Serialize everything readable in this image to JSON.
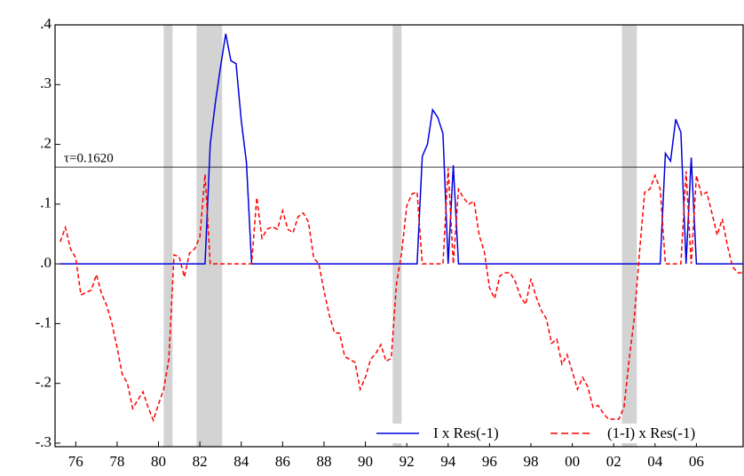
{
  "chart_data": {
    "type": "line",
    "x": [
      1975.25,
      1975.5,
      1975.75,
      1976,
      1976.25,
      1976.5,
      1976.75,
      1977,
      1977.25,
      1977.5,
      1977.75,
      1978,
      1978.25,
      1978.5,
      1978.75,
      1979,
      1979.25,
      1979.5,
      1979.75,
      1980,
      1980.25,
      1980.5,
      1980.75,
      1981,
      1981.25,
      1981.5,
      1981.75,
      1982,
      1982.25,
      1982.5,
      1982.75,
      1983,
      1983.25,
      1983.5,
      1983.75,
      1984,
      1984.25,
      1984.5,
      1984.75,
      1985,
      1985.25,
      1985.5,
      1985.75,
      1986,
      1986.25,
      1986.5,
      1986.75,
      1987,
      1987.25,
      1987.5,
      1987.75,
      1988,
      1988.25,
      1988.5,
      1988.75,
      1989,
      1989.25,
      1989.5,
      1989.75,
      1990,
      1990.25,
      1990.5,
      1990.75,
      1991,
      1991.25,
      1991.5,
      1991.75,
      1992,
      1992.25,
      1992.5,
      1992.75,
      1993,
      1993.25,
      1993.5,
      1993.75,
      1994,
      1994.25,
      1994.5,
      1994.75,
      1995,
      1995.25,
      1995.5,
      1995.75,
      1996,
      1996.25,
      1996.5,
      1996.75,
      1997,
      1997.25,
      1997.5,
      1997.75,
      1998,
      1998.25,
      1998.5,
      1998.75,
      1999,
      1999.25,
      1999.5,
      1999.75,
      2000,
      2000.25,
      2000.5,
      2000.75,
      2001,
      2001.25,
      2001.5,
      2001.75,
      2002,
      2002.25,
      2002.5,
      2002.75,
      2003,
      2003.25,
      2003.5,
      2003.75,
      2004,
      2004.25,
      2004.5,
      2004.75,
      2005,
      2005.25,
      2005.5,
      2005.75,
      2006,
      2006.25,
      2006.5,
      2006.75,
      2007,
      2007.25,
      2007.5,
      2007.75,
      2008,
      2008.25
    ],
    "series": [
      {
        "name": "I x Res(-1)",
        "color": "#0000dd",
        "style": "solid",
        "values": [
          0,
          0,
          0,
          0,
          0,
          0,
          0,
          0,
          0,
          0,
          0,
          0,
          0,
          0,
          0,
          0,
          0,
          0,
          0,
          0,
          0,
          0,
          0,
          0,
          0,
          0,
          0,
          0,
          0,
          0.2,
          0.27,
          0.33,
          0.385,
          0.34,
          0.335,
          0.24,
          0.17,
          0,
          0,
          0,
          0,
          0,
          0,
          0,
          0,
          0,
          0,
          0,
          0,
          0,
          0,
          0,
          0,
          0,
          0,
          0,
          0,
          0,
          0,
          0,
          0,
          0,
          0,
          0,
          0,
          0,
          0,
          0,
          0,
          0,
          0.18,
          0.2,
          0.258,
          0.245,
          0.218,
          0,
          0.165,
          0,
          0,
          0,
          0,
          0,
          0,
          0,
          0,
          0,
          0,
          0,
          0,
          0,
          0,
          0,
          0,
          0,
          0,
          0,
          0,
          0,
          0,
          0,
          0,
          0,
          0,
          0,
          0,
          0,
          0,
          0,
          0,
          0,
          0,
          0,
          0,
          0,
          0,
          0,
          0,
          0.185,
          0.172,
          0.242,
          0.22,
          0,
          0.178,
          0,
          0,
          0,
          0,
          0,
          0,
          0,
          0,
          0,
          0
        ]
      },
      {
        "name": "(1-I) x Res(-1)",
        "color": "#ff0000",
        "style": "dashed",
        "values": [
          0.037,
          0.061,
          0.025,
          0.01,
          -0.052,
          -0.048,
          -0.044,
          -0.018,
          -0.05,
          -0.07,
          -0.1,
          -0.14,
          -0.185,
          -0.2,
          -0.242,
          -0.228,
          -0.214,
          -0.24,
          -0.262,
          -0.235,
          -0.21,
          -0.16,
          0.015,
          0.012,
          -0.022,
          0.018,
          0.025,
          0.045,
          0.15,
          0,
          0,
          0,
          0,
          0,
          0,
          0,
          0,
          0,
          0.111,
          0.043,
          0.058,
          0.062,
          0.058,
          0.089,
          0.058,
          0.052,
          0.079,
          0.085,
          0.07,
          0.01,
          0,
          -0.045,
          -0.085,
          -0.115,
          -0.116,
          -0.155,
          -0.16,
          -0.165,
          -0.21,
          -0.19,
          -0.16,
          -0.15,
          -0.135,
          -0.163,
          -0.158,
          -0.034,
          0.018,
          0.097,
          0.117,
          0.12,
          0,
          0,
          0,
          0,
          0,
          0.16,
          0,
          0.125,
          0.11,
          0.1,
          0.105,
          0.048,
          0.02,
          -0.04,
          -0.058,
          -0.02,
          -0.015,
          -0.015,
          -0.03,
          -0.055,
          -0.068,
          -0.025,
          -0.055,
          -0.078,
          -0.092,
          -0.133,
          -0.126,
          -0.168,
          -0.152,
          -0.18,
          -0.21,
          -0.19,
          -0.206,
          -0.24,
          -0.237,
          -0.25,
          -0.26,
          -0.26,
          -0.26,
          -0.24,
          -0.16,
          -0.09,
          0.02,
          0.12,
          0.125,
          0.148,
          0.125,
          0,
          0,
          0,
          0,
          0.155,
          0,
          0.148,
          0.115,
          0.12,
          0.085,
          0.048,
          0.075,
          0.03,
          -0.005,
          -0.015,
          -0.015
        ]
      }
    ],
    "shaded_periods": [
      [
        1980.25,
        1980.68
      ],
      [
        1981.84,
        1983.08
      ],
      [
        1991.32,
        1991.75
      ],
      [
        2002.4,
        2003.12
      ]
    ],
    "shade_color": "#d3d3d3",
    "threshold": {
      "value": 0.162,
      "label": "τ=0.1620"
    },
    "xlim": [
      1975,
      2008.3
    ],
    "xticks": [
      {
        "value": 1976,
        "label": "76"
      },
      {
        "value": 1978,
        "label": "78"
      },
      {
        "value": 1980,
        "label": "80"
      },
      {
        "value": 1982,
        "label": "82"
      },
      {
        "value": 1984,
        "label": "84"
      },
      {
        "value": 1986,
        "label": "86"
      },
      {
        "value": 1988,
        "label": "88"
      },
      {
        "value": 1990,
        "label": "90"
      },
      {
        "value": 1992,
        "label": "92"
      },
      {
        "value": 1994,
        "label": "94"
      },
      {
        "value": 1996,
        "label": "96"
      },
      {
        "value": 1998,
        "label": "98"
      },
      {
        "value": 2000,
        "label": "00"
      },
      {
        "value": 2002,
        "label": "02"
      },
      {
        "value": 2004,
        "label": "04"
      },
      {
        "value": 2006,
        "label": "06"
      }
    ],
    "ylim": [
      -0.306,
      0.4
    ],
    "yticks": [
      {
        "value": -0.3,
        "label": "-.3"
      },
      {
        "value": -0.2,
        "label": "-.2"
      },
      {
        "value": -0.1,
        "label": "-.1"
      },
      {
        "value": 0,
        "label": ".0"
      },
      {
        "value": 0.1,
        "label": ".1"
      },
      {
        "value": 0.2,
        "label": ".2"
      },
      {
        "value": 0.3,
        "label": ".3"
      },
      {
        "value": 0.4,
        "label": ".4"
      }
    ],
    "legend": "lower right"
  }
}
